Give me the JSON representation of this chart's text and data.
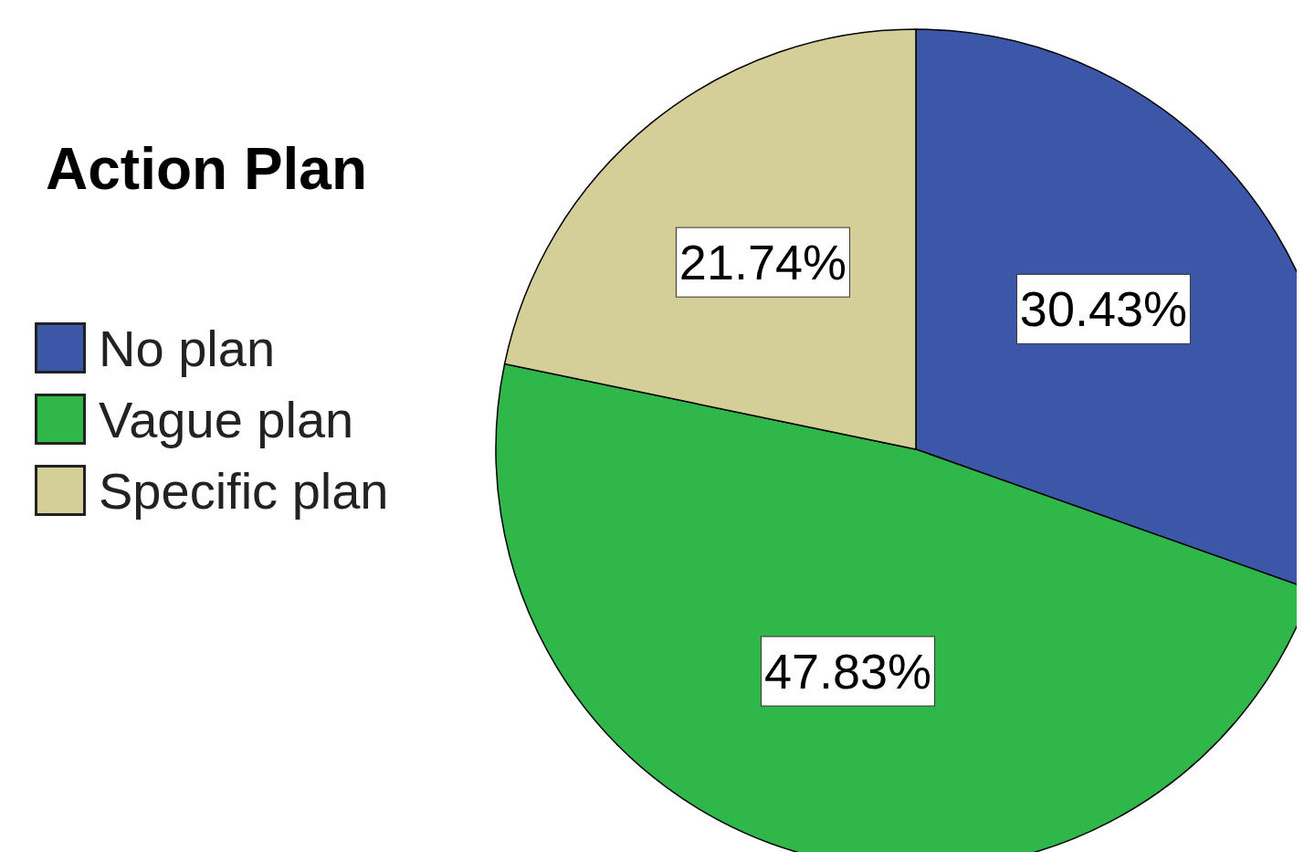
{
  "chart_data": {
    "type": "pie",
    "legend_title": "Action Plan",
    "categories": [
      "No plan",
      "Vague plan",
      "Specific plan"
    ],
    "values": [
      30.43,
      47.83,
      21.74
    ],
    "colors": [
      "#3c56a8",
      "#2fb74a",
      "#d4ce98"
    ],
    "value_labels": [
      "30.43%",
      "47.83%",
      "21.74%"
    ],
    "legend": "left"
  }
}
